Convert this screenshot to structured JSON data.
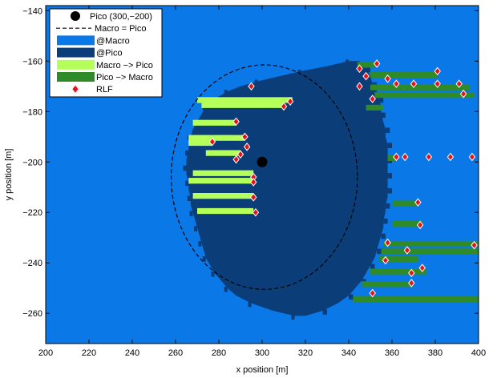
{
  "chart_data": {
    "type": "heatmap",
    "title": "",
    "xlabel": "x position [m]",
    "ylabel": "y position [m]",
    "xlim": [
      200,
      400
    ],
    "ylim": [
      -272,
      -138
    ],
    "x_ticks": [
      200,
      220,
      240,
      260,
      280,
      300,
      320,
      340,
      360,
      380,
      400
    ],
    "y_ticks": [
      -140,
      -160,
      -180,
      -200,
      -220,
      -240,
      -260
    ],
    "colors": {
      "macro": "#0a78e6",
      "pico": "#0b3d78",
      "macro_to_pico": "#b4ff5a",
      "pico_to_macro": "#2e8b28",
      "rlf": "#e4131a",
      "pico_marker": "#000000"
    },
    "legend": {
      "placement": "top-left",
      "entries": [
        {
          "key": "pico",
          "label": "Pico (300,−200)"
        },
        {
          "key": "boundary",
          "label": "Macro = Pico"
        },
        {
          "key": "macro_area",
          "label": "@Macro"
        },
        {
          "key": "pico_area",
          "label": "@Pico"
        },
        {
          "key": "m2p",
          "label": "Macro −> Pico"
        },
        {
          "key": "p2m",
          "label": "Pico −> Macro"
        },
        {
          "key": "rlf",
          "label": "RLF"
        }
      ]
    },
    "pico_station": {
      "x": 300,
      "y": -200
    },
    "boundary_ellipse": {
      "cx": 301,
      "cy": -206,
      "rx": 43,
      "ry": 44.5
    },
    "pico_region_left_edge": [
      [
        -160,
        340
      ],
      [
        -162,
        330
      ],
      [
        -164,
        318
      ],
      [
        -166,
        308
      ],
      [
        -168,
        298
      ],
      [
        -170,
        290
      ],
      [
        -172,
        284
      ],
      [
        -175,
        278
      ],
      [
        -178,
        274
      ],
      [
        -181,
        272
      ],
      [
        -184,
        270
      ],
      [
        -187,
        268
      ],
      [
        -190,
        267
      ],
      [
        -193,
        266
      ],
      [
        -196,
        266
      ],
      [
        -199,
        265
      ],
      [
        -202,
        265
      ],
      [
        -205,
        265
      ],
      [
        -208,
        266
      ],
      [
        -211,
        266
      ],
      [
        -214,
        267
      ],
      [
        -217,
        267
      ],
      [
        -220,
        268
      ],
      [
        -223,
        269
      ],
      [
        -226,
        270
      ],
      [
        -229,
        271
      ],
      [
        -232,
        272
      ],
      [
        -235,
        273
      ],
      [
        -238,
        274
      ],
      [
        -241,
        276
      ],
      [
        -244,
        278
      ],
      [
        -247,
        281
      ],
      [
        -250,
        284
      ],
      [
        -253,
        288
      ],
      [
        -256,
        295
      ],
      [
        -259,
        305
      ],
      [
        -261,
        315
      ]
    ],
    "pico_region_right_edge": [
      [
        -160,
        345
      ],
      [
        -163,
        348
      ],
      [
        -166,
        350
      ],
      [
        -169,
        351
      ],
      [
        -172,
        353
      ],
      [
        -175,
        354
      ],
      [
        -178,
        355
      ],
      [
        -181,
        355
      ],
      [
        -184,
        356
      ],
      [
        -187,
        357
      ],
      [
        -190,
        357
      ],
      [
        -193,
        358
      ],
      [
        -196,
        358
      ],
      [
        -199,
        358
      ],
      [
        -202,
        358
      ],
      [
        -205,
        358
      ],
      [
        -208,
        358
      ],
      [
        -211,
        358
      ],
      [
        -214,
        358
      ],
      [
        -217,
        357
      ],
      [
        -220,
        357
      ],
      [
        -223,
        356
      ],
      [
        -226,
        356
      ],
      [
        -229,
        355
      ],
      [
        -232,
        354
      ],
      [
        -235,
        353
      ],
      [
        -238,
        352
      ],
      [
        -241,
        350
      ],
      [
        -244,
        348
      ],
      [
        -247,
        346
      ],
      [
        -250,
        343
      ],
      [
        -253,
        340
      ],
      [
        -256,
        335
      ],
      [
        -259,
        328
      ],
      [
        -261,
        320
      ]
    ],
    "macro_to_pico_strips": [
      {
        "y": -175,
        "x_start": 270,
        "x_end": 314
      },
      {
        "y": -177,
        "x_start": 272,
        "x_end": 310
      },
      {
        "y": -184,
        "x_start": 268,
        "x_end": 288
      },
      {
        "y": -190,
        "x_start": 266,
        "x_end": 292
      },
      {
        "y": -192,
        "x_start": 266,
        "x_end": 277
      },
      {
        "y": -196,
        "x_start": 274,
        "x_end": 290
      },
      {
        "y": -204,
        "x_start": 268,
        "x_end": 296
      },
      {
        "y": -207,
        "x_start": 266,
        "x_end": 296
      },
      {
        "y": -213,
        "x_start": 268,
        "x_end": 296
      },
      {
        "y": -219,
        "x_start": 270,
        "x_end": 296
      }
    ],
    "pico_to_macro_strips": [
      {
        "y": -161,
        "x_start": 344,
        "x_end": 352
      },
      {
        "y": -165,
        "x_start": 350,
        "x_end": 381
      },
      {
        "y": -170,
        "x_start": 350,
        "x_end": 396
      },
      {
        "y": -173,
        "x_start": 352,
        "x_end": 398
      },
      {
        "y": -178,
        "x_start": 348,
        "x_end": 356
      },
      {
        "y": -198,
        "x_start": 358,
        "x_end": 362
      },
      {
        "y": -216,
        "x_start": 360,
        "x_end": 372
      },
      {
        "y": -224,
        "x_start": 360,
        "x_end": 374
      },
      {
        "y": -232,
        "x_start": 356,
        "x_end": 400
      },
      {
        "y": -235,
        "x_start": 355,
        "x_end": 400
      },
      {
        "y": -238,
        "x_start": 354,
        "x_end": 372
      },
      {
        "y": -243,
        "x_start": 350,
        "x_end": 376
      },
      {
        "y": -248,
        "x_start": 346,
        "x_end": 370
      },
      {
        "y": -254,
        "x_start": 342,
        "x_end": 400
      }
    ],
    "rlf_points": [
      {
        "x": 353,
        "y": -161
      },
      {
        "x": 345,
        "y": -163
      },
      {
        "x": 381,
        "y": -164
      },
      {
        "x": 348,
        "y": -166
      },
      {
        "x": 358,
        "y": -167
      },
      {
        "x": 345,
        "y": -170
      },
      {
        "x": 362,
        "y": -169
      },
      {
        "x": 370,
        "y": -169
      },
      {
        "x": 381,
        "y": -169
      },
      {
        "x": 391,
        "y": -169
      },
      {
        "x": 393,
        "y": -173
      },
      {
        "x": 295,
        "y": -170
      },
      {
        "x": 351,
        "y": -175
      },
      {
        "x": 313,
        "y": -176
      },
      {
        "x": 310,
        "y": -178
      },
      {
        "x": 288,
        "y": -184
      },
      {
        "x": 292,
        "y": -190
      },
      {
        "x": 277,
        "y": -192
      },
      {
        "x": 293,
        "y": -194
      },
      {
        "x": 290,
        "y": -197
      },
      {
        "x": 288,
        "y": -199
      },
      {
        "x": 362,
        "y": -198
      },
      {
        "x": 366,
        "y": -198
      },
      {
        "x": 377,
        "y": -198
      },
      {
        "x": 387,
        "y": -198
      },
      {
        "x": 397,
        "y": -198
      },
      {
        "x": 296,
        "y": -206
      },
      {
        "x": 296,
        "y": -208
      },
      {
        "x": 296,
        "y": -214
      },
      {
        "x": 297,
        "y": -220
      },
      {
        "x": 372,
        "y": -216
      },
      {
        "x": 373,
        "y": -225
      },
      {
        "x": 358,
        "y": -232
      },
      {
        "x": 398,
        "y": -233
      },
      {
        "x": 367,
        "y": -235
      },
      {
        "x": 357,
        "y": -239
      },
      {
        "x": 374,
        "y": -242
      },
      {
        "x": 369,
        "y": -244
      },
      {
        "x": 369,
        "y": -248
      },
      {
        "x": 351,
        "y": -252
      }
    ]
  }
}
